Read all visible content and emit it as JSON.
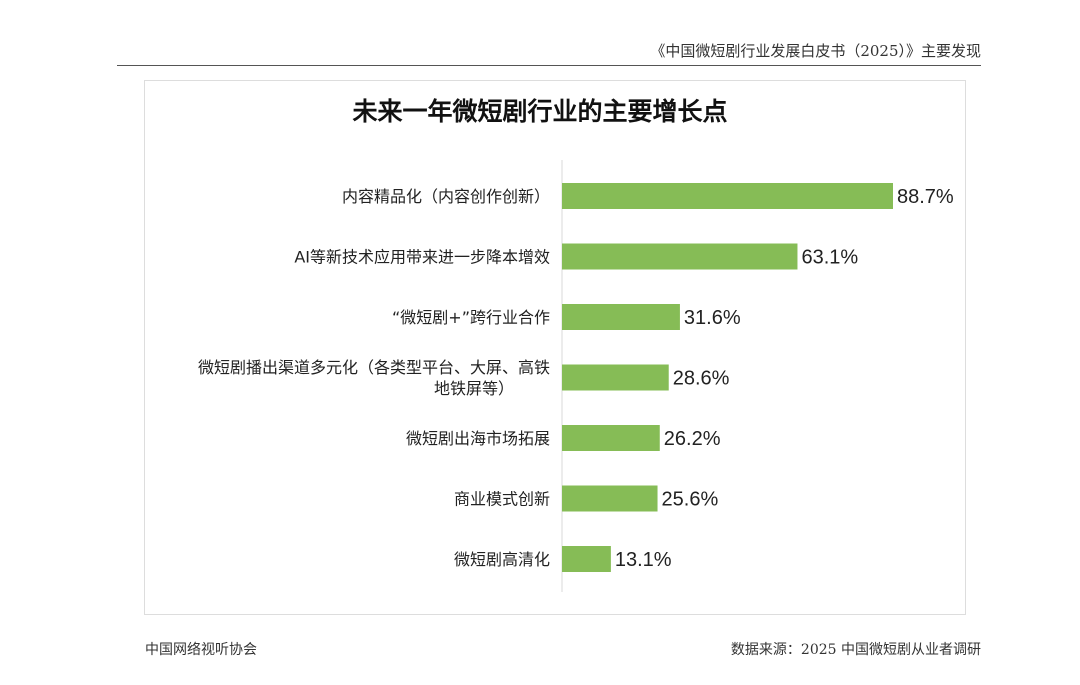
{
  "header": {
    "text": "《中国微短剧行业发展白皮书（2025）》主要发现"
  },
  "footer": {
    "left": "中国网络视听协会",
    "right": "数据来源：2025 中国微短剧从业者调研"
  },
  "chart_data": {
    "type": "bar",
    "orientation": "horizontal",
    "title": "未来一年微短剧行业的主要增长点",
    "categories": [
      [
        "内容精品化（内容创作创新）"
      ],
      [
        "AI等新技术应用带来进一步降本增效"
      ],
      [
        "“微短剧+”跨行业合作"
      ],
      [
        "微短剧播出渠道多元化（各类型平台、大屏、高铁",
        "地铁屏等）"
      ],
      [
        "微短剧出海市场拓展"
      ],
      [
        "商业模式创新"
      ],
      [
        "微短剧高清化"
      ]
    ],
    "values": [
      88.7,
      63.1,
      31.6,
      28.6,
      26.2,
      25.6,
      13.1
    ],
    "labels": [
      "88.7%",
      "63.1%",
      "31.6%",
      "28.6%",
      "26.2%",
      "25.6%",
      "13.1%"
    ],
    "unit": "%",
    "bar_color": "#86bc56",
    "grid": false,
    "legend": "none"
  }
}
